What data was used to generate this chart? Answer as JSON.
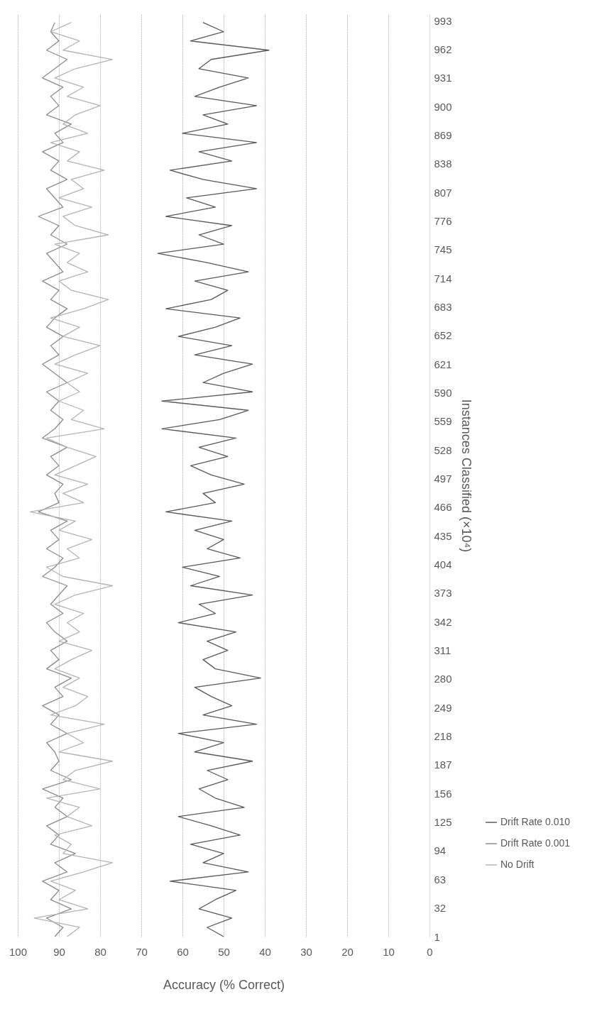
{
  "chart_data": {
    "type": "line",
    "xlabel": "Accuracy (% Correct)",
    "ylabel": "Instances Classified (×10⁴)",
    "series": [
      {
        "name": "Drift Rate 0.010",
        "color": "#595959",
        "x": [
          50,
          54,
          48,
          56,
          52,
          47,
          63,
          44,
          55,
          50,
          58,
          46,
          53,
          61,
          45,
          52,
          56,
          49,
          54,
          43,
          57,
          50,
          61,
          42,
          55,
          48,
          53,
          57,
          41,
          52,
          55,
          49,
          54,
          47,
          61,
          52,
          56,
          43,
          58,
          51,
          60,
          46,
          54,
          50,
          57,
          48,
          64,
          52,
          55,
          45,
          53,
          58,
          49,
          56,
          47,
          65,
          51,
          44,
          65,
          43,
          55,
          50,
          43,
          57,
          48,
          61,
          52,
          46,
          64,
          53,
          49,
          57,
          44,
          54,
          66,
          50,
          56,
          48,
          64,
          52,
          59,
          42,
          55,
          63,
          48,
          56,
          42,
          60,
          49,
          55,
          42,
          57,
          51,
          44,
          56,
          53,
          39,
          58,
          50,
          55
        ],
        "values": [
          1,
          11,
          21,
          31,
          41,
          51,
          61,
          71,
          81,
          91,
          101,
          111,
          121,
          131,
          141,
          151,
          161,
          171,
          181,
          191,
          201,
          211,
          221,
          231,
          241,
          251,
          261,
          271,
          281,
          291,
          301,
          311,
          321,
          331,
          341,
          351,
          361,
          371,
          381,
          391,
          401,
          411,
          421,
          431,
          441,
          451,
          461,
          471,
          481,
          491,
          501,
          511,
          521,
          531,
          541,
          551,
          561,
          571,
          581,
          591,
          601,
          611,
          621,
          631,
          641,
          651,
          661,
          671,
          681,
          691,
          701,
          711,
          721,
          731,
          741,
          751,
          761,
          771,
          781,
          791,
          801,
          811,
          821,
          831,
          841,
          851,
          861,
          871,
          881,
          891,
          901,
          911,
          921,
          931,
          941,
          951,
          961,
          971,
          981,
          991
        ]
      },
      {
        "name": "Drift Rate 0.001",
        "color": "#8c8c8c",
        "x": [
          91,
          89,
          93,
          87,
          92,
          90,
          94,
          88,
          91,
          86,
          92,
          90,
          93,
          88,
          91,
          89,
          94,
          87,
          92,
          90,
          91,
          93,
          88,
          92,
          90,
          94,
          89,
          91,
          87,
          93,
          90,
          92,
          88,
          91,
          93,
          89,
          92,
          90,
          88,
          94,
          91,
          89,
          93,
          90,
          92,
          88,
          95,
          90,
          91,
          89,
          93,
          90,
          92,
          88,
          94,
          91,
          89,
          92,
          90,
          93,
          88,
          91,
          94,
          90,
          92,
          89,
          93,
          91,
          88,
          92,
          90,
          94,
          89,
          91,
          93,
          88,
          92,
          90,
          95,
          89,
          91,
          93,
          88,
          92,
          90,
          94,
          89,
          91,
          87,
          93,
          90,
          92,
          89,
          94,
          91,
          88,
          93,
          90,
          92,
          91
        ],
        "values": [
          1,
          11,
          21,
          31,
          41,
          51,
          61,
          71,
          81,
          91,
          101,
          111,
          121,
          131,
          141,
          151,
          161,
          171,
          181,
          191,
          201,
          211,
          221,
          231,
          241,
          251,
          261,
          271,
          281,
          291,
          301,
          311,
          321,
          331,
          341,
          351,
          361,
          371,
          381,
          391,
          401,
          411,
          421,
          431,
          441,
          451,
          461,
          471,
          481,
          491,
          501,
          511,
          521,
          531,
          541,
          551,
          561,
          571,
          581,
          591,
          601,
          611,
          621,
          631,
          641,
          651,
          661,
          671,
          681,
          691,
          701,
          711,
          721,
          731,
          741,
          751,
          761,
          771,
          781,
          791,
          801,
          811,
          821,
          831,
          841,
          851,
          861,
          871,
          881,
          891,
          901,
          911,
          921,
          931,
          941,
          951,
          961,
          971,
          981,
          991
        ]
      },
      {
        "name": "No Drift",
        "color": "#b4b4b4",
        "x": [
          88,
          85,
          96,
          83,
          90,
          86,
          92,
          84,
          77,
          89,
          87,
          91,
          82,
          88,
          85,
          93,
          80,
          89,
          86,
          77,
          90,
          84,
          88,
          79,
          92,
          86,
          83,
          89,
          85,
          91,
          87,
          82,
          90,
          85,
          88,
          84,
          91,
          86,
          77,
          89,
          93,
          85,
          88,
          82,
          90,
          86,
          97,
          84,
          89,
          83,
          91,
          86,
          81,
          88,
          93,
          79,
          87,
          84,
          90,
          85,
          88,
          83,
          91,
          86,
          80,
          89,
          85,
          92,
          84,
          78,
          87,
          90,
          83,
          88,
          85,
          91,
          78,
          86,
          89,
          82,
          90,
          84,
          87,
          79,
          88,
          85,
          92,
          83,
          89,
          86,
          80,
          88,
          84,
          91,
          86,
          77,
          89,
          85,
          92,
          87
        ],
        "values": [
          1,
          11,
          21,
          31,
          41,
          51,
          61,
          71,
          81,
          91,
          101,
          111,
          121,
          131,
          141,
          151,
          161,
          171,
          181,
          191,
          201,
          211,
          221,
          231,
          241,
          251,
          261,
          271,
          281,
          291,
          301,
          311,
          321,
          331,
          341,
          351,
          361,
          371,
          381,
          391,
          401,
          411,
          421,
          431,
          441,
          451,
          461,
          471,
          481,
          491,
          501,
          511,
          521,
          531,
          541,
          551,
          561,
          571,
          581,
          591,
          601,
          611,
          621,
          631,
          641,
          651,
          661,
          671,
          681,
          691,
          701,
          711,
          721,
          731,
          741,
          751,
          761,
          771,
          781,
          791,
          801,
          811,
          821,
          831,
          841,
          851,
          861,
          871,
          881,
          891,
          901,
          911,
          921,
          931,
          941,
          951,
          961,
          971,
          981,
          991
        ]
      }
    ],
    "xlim": [
      100,
      0
    ],
    "xticks": [
      100,
      90,
      80,
      70,
      60,
      50,
      40,
      30,
      20,
      10,
      0
    ],
    "ylim": [
      1,
      1000
    ],
    "yticks": [
      1,
      32,
      63,
      94,
      125,
      156,
      187,
      218,
      249,
      280,
      311,
      342,
      373,
      404,
      435,
      466,
      497,
      528,
      559,
      590,
      621,
      652,
      683,
      714,
      745,
      776,
      807,
      838,
      869,
      900,
      931,
      962,
      993
    ],
    "grid": "x",
    "legend": "right",
    "marker": "none",
    "line_style": "solid"
  }
}
